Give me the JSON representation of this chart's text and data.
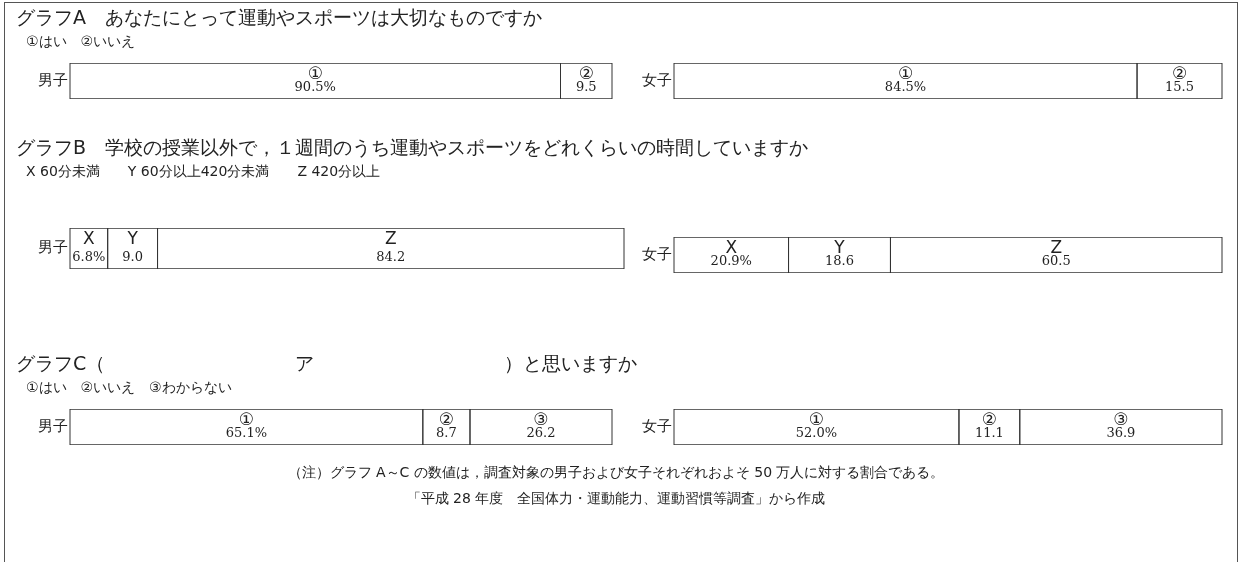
{
  "chart_data": [
    {
      "type": "bar",
      "title": "グラフA　あなたにとって運動やスポーツは大切なものですか",
      "subtitle": "①はい　②いいえ",
      "orientation": "horizontal",
      "stacked": true,
      "categories": [
        "男子"
      ],
      "xlim": [
        0,
        100
      ],
      "tick_labels": "y",
      "series": [
        {
          "name": "①",
          "color": "#ffffff",
          "values": [
            90.5
          ],
          "value_labels": [
            "90.5%"
          ]
        },
        {
          "name": "②",
          "color": "#ffffff",
          "values": [
            9.5
          ],
          "value_labels": [
            "9.5"
          ]
        }
      ]
    },
    {
      "type": "bar",
      "orientation": "horizontal",
      "stacked": true,
      "categories": [
        "女子"
      ],
      "xlim": [
        0,
        100
      ],
      "tick_labels": "y",
      "series": [
        {
          "name": "①",
          "color": "#ffffff",
          "values": [
            84.5
          ],
          "value_labels": [
            "84.5%"
          ]
        },
        {
          "name": "②",
          "color": "#ffffff",
          "values": [
            15.5
          ],
          "value_labels": [
            "15.5"
          ]
        }
      ]
    },
    {
      "type": "bar",
      "title": "グラフB　学校の授業以外で，１週間のうち運動やスポーツをどれくらいの時間していますか",
      "subtitle": "X 60分未満　　Y 60分以上420分未満　　Z 420分以上",
      "orientation": "horizontal",
      "stacked": true,
      "categories": [
        "男子"
      ],
      "xlim": [
        0,
        100
      ],
      "tick_labels": "y",
      "series": [
        {
          "name": "X",
          "color": "#ffffff",
          "values": [
            6.8
          ],
          "value_labels": [
            "6.8%"
          ]
        },
        {
          "name": "Y",
          "color": "#ffffff",
          "values": [
            9.0
          ],
          "value_labels": [
            "9.0"
          ]
        },
        {
          "name": "Z",
          "color": "#ffffff",
          "values": [
            84.2
          ],
          "value_labels": [
            "84.2"
          ]
        }
      ]
    },
    {
      "type": "bar",
      "orientation": "horizontal",
      "stacked": true,
      "categories": [
        "女子"
      ],
      "xlim": [
        0,
        100
      ],
      "tick_labels": "y",
      "series": [
        {
          "name": "X",
          "color": "#ffffff",
          "values": [
            20.9
          ],
          "value_labels": [
            "20.9%"
          ]
        },
        {
          "name": "Y",
          "color": "#ffffff",
          "values": [
            18.6
          ],
          "value_labels": [
            "18.6"
          ]
        },
        {
          "name": "Z",
          "color": "#ffffff",
          "values": [
            60.5
          ],
          "value_labels": [
            "60.5"
          ]
        }
      ]
    },
    {
      "type": "bar",
      "title": "グラフC（　　　　　　　　　　ア　　　　　　　　　　）と思いますか",
      "subtitle": "①はい　②いいえ　③わからない",
      "orientation": "horizontal",
      "stacked": true,
      "categories": [
        "男子"
      ],
      "xlim": [
        0,
        100
      ],
      "tick_labels": "y",
      "annotations": [
        "（注）グラフ A～C の数値は，調査対象の男子および女子それぞれおよそ 50 万人に対する割合である。",
        "「平成 28 年度　全国体力・運動能力、運動習慣等調査」から作成"
      ],
      "series": [
        {
          "name": "①",
          "color": "#ffffff",
          "values": [
            65.1
          ],
          "value_labels": [
            "65.1%"
          ]
        },
        {
          "name": "②",
          "color": "#ffffff",
          "values": [
            8.7
          ],
          "value_labels": [
            "8.7"
          ]
        },
        {
          "name": "③",
          "color": "#ffffff",
          "values": [
            26.2
          ],
          "value_labels": [
            "26.2"
          ]
        }
      ]
    },
    {
      "type": "bar",
      "orientation": "horizontal",
      "stacked": true,
      "categories": [
        "女子"
      ],
      "xlim": [
        0,
        100
      ],
      "tick_labels": "y",
      "series": [
        {
          "name": "①",
          "color": "#ffffff",
          "values": [
            52.0
          ],
          "value_labels": [
            "52.0%"
          ]
        },
        {
          "name": "②",
          "color": "#ffffff",
          "values": [
            11.1
          ],
          "value_labels": [
            "11.1"
          ]
        },
        {
          "name": "③",
          "color": "#ffffff",
          "values": [
            36.9
          ],
          "value_labels": [
            "36.9"
          ]
        }
      ]
    }
  ]
}
